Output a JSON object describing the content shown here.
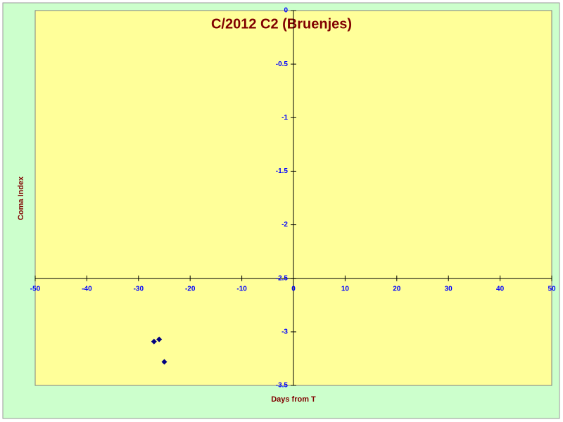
{
  "chart_data": {
    "type": "scatter",
    "title": "C/2012 C2 (Bruenjes)",
    "x_label": "Days from T",
    "y_label": "Coma Index",
    "series": [
      {
        "name": "Coma Index",
        "color": "#000080",
        "x": [
          -27,
          -26,
          -25
        ],
        "values": [
          -3.09,
          -3.07,
          -3.28
        ]
      }
    ],
    "xlim": [
      -50,
      50
    ],
    "xticks": [
      -50,
      -40,
      -30,
      -20,
      -10,
      0,
      10,
      20,
      30,
      40,
      50
    ],
    "ylim": [
      -3.5,
      0
    ],
    "yticks": [
      0,
      -0.5,
      -1,
      -1.5,
      -2,
      -2.5,
      -3,
      -3.5
    ],
    "grid": false
  }
}
